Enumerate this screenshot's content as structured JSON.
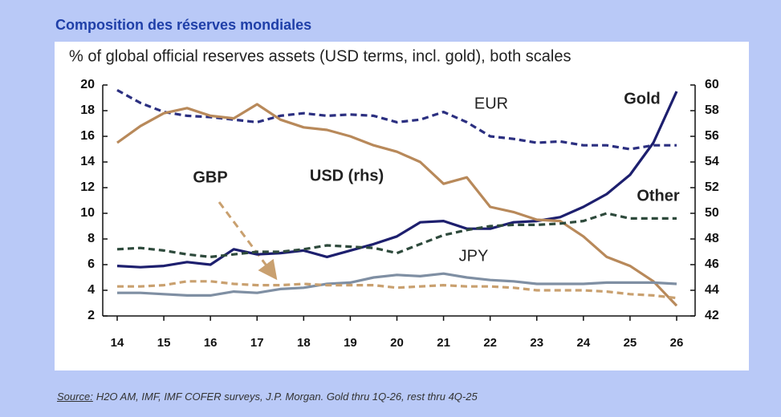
{
  "title": "Composition des réserves mondiales",
  "chart_data": {
    "type": "line",
    "title": "% of global official reserves assets (USD terms, incl. gold), both scales",
    "x": [
      14,
      14.5,
      15,
      15.5,
      16,
      16.5,
      17,
      17.5,
      18,
      18.5,
      19,
      19.5,
      20,
      20.5,
      21,
      21.5,
      22,
      22.5,
      23,
      23.5,
      24,
      24.5,
      25,
      25.5,
      26
    ],
    "xlim": [
      14,
      26
    ],
    "xticks": [
      14,
      15,
      16,
      17,
      18,
      19,
      20,
      21,
      22,
      23,
      24,
      25,
      26
    ],
    "ylim": [
      2,
      20
    ],
    "yticks": [
      2,
      4,
      6,
      8,
      10,
      12,
      14,
      16,
      18,
      20
    ],
    "y2lim": [
      42,
      60
    ],
    "y2ticks": [
      42,
      44,
      46,
      48,
      50,
      52,
      54,
      56,
      58,
      60
    ],
    "series": [
      {
        "name": "Gold",
        "color": "#1d1f6e",
        "dashed": false,
        "values": [
          5.9,
          5.8,
          5.9,
          6.2,
          6.0,
          7.2,
          6.8,
          6.9,
          7.1,
          6.6,
          7.1,
          7.6,
          8.2,
          9.3,
          9.4,
          8.8,
          8.8,
          9.3,
          9.4,
          9.7,
          10.5,
          11.5,
          13.0,
          15.5,
          19.5
        ]
      },
      {
        "name": "EUR",
        "color": "#2b2f80",
        "dashed": true,
        "values": [
          19.6,
          18.6,
          17.9,
          17.6,
          17.5,
          17.3,
          17.1,
          17.6,
          17.8,
          17.6,
          17.7,
          17.6,
          17.1,
          17.3,
          17.9,
          17.1,
          16.0,
          15.8,
          15.5,
          15.6,
          15.3,
          15.3,
          15.0,
          15.3,
          15.3
        ]
      },
      {
        "name": "USD (rhs)",
        "color": "#b8895a",
        "dashed": false,
        "axis": "y2",
        "values": [
          55.5,
          56.8,
          57.8,
          58.2,
          57.6,
          57.4,
          58.5,
          57.3,
          56.7,
          56.5,
          56.0,
          55.3,
          54.8,
          54.0,
          52.3,
          52.8,
          50.5,
          50.1,
          49.5,
          49.4,
          48.2,
          46.6,
          45.9,
          44.7,
          42.8
        ]
      },
      {
        "name": "Other",
        "color": "#2e4a3c",
        "dashed": true,
        "values": [
          7.2,
          7.3,
          7.1,
          6.8,
          6.6,
          6.8,
          7.0,
          7.0,
          7.2,
          7.5,
          7.4,
          7.3,
          6.9,
          7.6,
          8.3,
          8.7,
          9.0,
          9.1,
          9.1,
          9.2,
          9.4,
          10.0,
          9.6,
          9.6,
          9.6
        ]
      },
      {
        "name": "JPY",
        "color": "#7f8fa3",
        "dashed": false,
        "values": [
          3.8,
          3.8,
          3.7,
          3.6,
          3.6,
          3.9,
          3.8,
          4.1,
          4.2,
          4.5,
          4.6,
          5.0,
          5.2,
          5.1,
          5.3,
          5.0,
          4.8,
          4.7,
          4.5,
          4.5,
          4.5,
          4.6,
          4.6,
          4.6,
          4.5
        ]
      },
      {
        "name": "GBP",
        "color": "#c9a06f",
        "dashed": true,
        "values": [
          4.3,
          4.3,
          4.4,
          4.7,
          4.7,
          4.5,
          4.4,
          4.4,
          4.5,
          4.4,
          4.4,
          4.4,
          4.2,
          4.3,
          4.4,
          4.3,
          4.3,
          4.2,
          4.0,
          4.0,
          4.0,
          3.9,
          3.7,
          3.6,
          3.4
        ]
      }
    ]
  },
  "source": {
    "label": "Source:",
    "text": "H2O AM, IMF, IMF COFER surveys, J.P. Morgan. Gold thru 1Q-26, rest thru 4Q-25"
  }
}
